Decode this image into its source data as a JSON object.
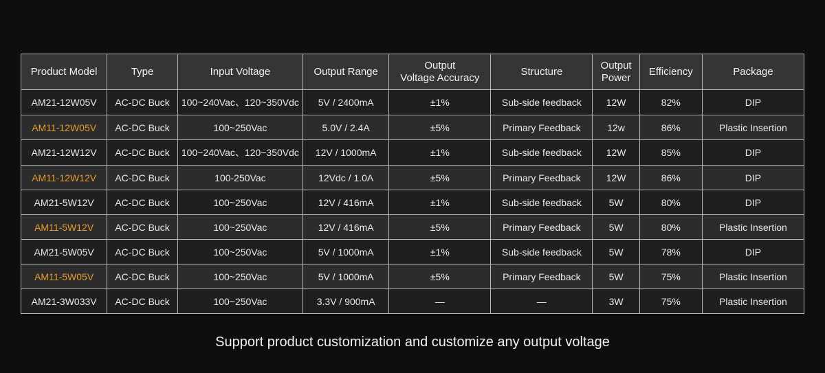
{
  "table": {
    "columns": [
      {
        "label": "Product Model",
        "width": "11%"
      },
      {
        "label": "Type",
        "width": "9%"
      },
      {
        "label": "Input Voltage",
        "width": "16%"
      },
      {
        "label": "Output Range",
        "width": "11%"
      },
      {
        "label": "Output\nVoltage Accuracy",
        "width": "13%"
      },
      {
        "label": "Structure",
        "width": "13%"
      },
      {
        "label": "Output\nPower",
        "width": "6%"
      },
      {
        "label": "Efficiency",
        "width": "8%"
      },
      {
        "label": "Package",
        "width": "13%"
      }
    ],
    "rows": [
      {
        "highlight": false,
        "cells": [
          "AM21-12W05V",
          "AC-DC Buck",
          "100~240Vac、120~350Vdc",
          "5V / 2400mA",
          "±1%",
          "Sub-side feedback",
          "12W",
          "82%",
          "DIP"
        ]
      },
      {
        "highlight": true,
        "cells": [
          "AM11-12W05V",
          "AC-DC Buck",
          "100~250Vac",
          "5.0V / 2.4A",
          "±5%",
          "Primary Feedback",
          "12w",
          "86%",
          "Plastic Insertion"
        ]
      },
      {
        "highlight": false,
        "cells": [
          "AM21-12W12V",
          "AC-DC Buck",
          "100~240Vac、120~350Vdc",
          "12V / 1000mA",
          "±1%",
          "Sub-side feedback",
          "12W",
          "85%",
          "DIP"
        ]
      },
      {
        "highlight": true,
        "cells": [
          "AM11-12W12V",
          "AC-DC Buck",
          "100-250Vac",
          "12Vdc / 1.0A",
          "±5%",
          "Primary Feedback",
          "12W",
          "86%",
          "DIP"
        ]
      },
      {
        "highlight": false,
        "cells": [
          "AM21-5W12V",
          "AC-DC Buck",
          "100~250Vac",
          "12V / 416mA",
          "±1%",
          "Sub-side feedback",
          "5W",
          "80%",
          "DIP"
        ]
      },
      {
        "highlight": true,
        "cells": [
          "AM11-5W12V",
          "AC-DC Buck",
          "100~250Vac",
          "12V / 416mA",
          "±5%",
          "Primary Feedback",
          "5W",
          "80%",
          "Plastic Insertion"
        ]
      },
      {
        "highlight": false,
        "cells": [
          "AM21-5W05V",
          "AC-DC Buck",
          "100~250Vac",
          "5V / 1000mA",
          "±1%",
          "Sub-side feedback",
          "5W",
          "78%",
          "DIP"
        ]
      },
      {
        "highlight": true,
        "cells": [
          "AM11-5W05V",
          "AC-DC Buck",
          "100~250Vac",
          "5V / 1000mA",
          "±5%",
          "Primary Feedback",
          "5W",
          "75%",
          "Plastic Insertion"
        ]
      },
      {
        "highlight": false,
        "cells": [
          "AM21-3W033V",
          "AC-DC Buck",
          "100~250Vac",
          "3.3V / 900mA",
          "—",
          "—",
          "3W",
          "75%",
          "Plastic Insertion"
        ]
      }
    ],
    "header_bg": "#353535",
    "row_even_bg": "#1f1f1f",
    "row_odd_bg": "#2c2c2c",
    "border_color": "#b8b8b8",
    "highlight_color": "#e79a2f",
    "text_color": "#e8e8e8",
    "font_size_header": 15,
    "font_size_cell": 14
  },
  "caption": "Support product customization and customize any output voltage",
  "page_bg": "#0e0e0e"
}
